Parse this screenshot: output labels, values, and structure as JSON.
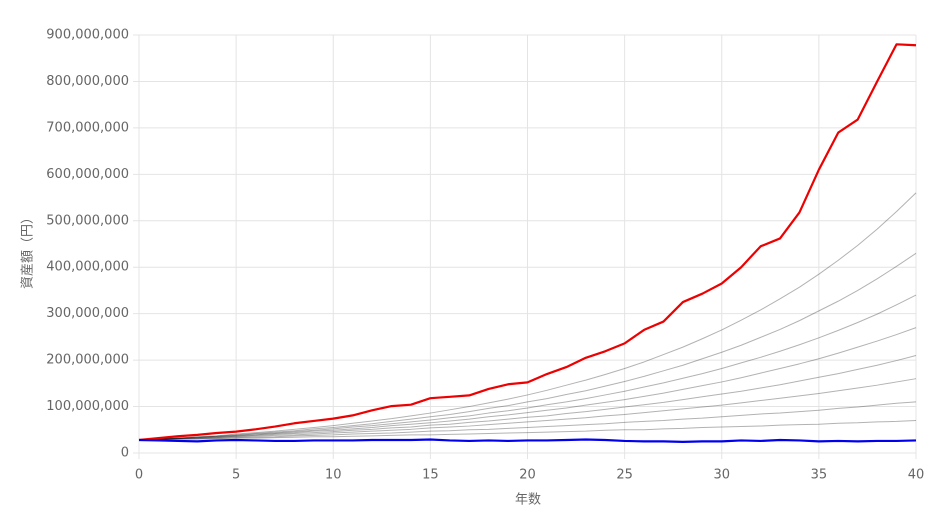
{
  "chart_data": {
    "type": "line",
    "xlabel": "年数",
    "ylabel": "資産額（円）",
    "x": [
      0,
      1,
      2,
      3,
      4,
      5,
      6,
      7,
      8,
      9,
      10,
      11,
      12,
      13,
      14,
      15,
      16,
      17,
      18,
      19,
      20,
      21,
      22,
      23,
      24,
      25,
      26,
      27,
      28,
      29,
      30,
      31,
      32,
      33,
      34,
      35,
      36,
      37,
      38,
      39,
      40
    ],
    "xlim": [
      0,
      40
    ],
    "xticks": [
      0,
      5,
      10,
      15,
      20,
      25,
      30,
      35,
      40
    ],
    "ylim": [
      0,
      900000000
    ],
    "yticks": [
      0,
      {
        "value": 100000000,
        "label": "100,000,000"
      },
      {
        "value": 200000000,
        "label": "200,000,000"
      },
      {
        "value": 300000000,
        "label": "300,000,000"
      },
      {
        "value": 400000000,
        "label": "400,000,000"
      },
      {
        "value": 500000000,
        "label": "500,000,000"
      },
      {
        "value": 600000000,
        "label": "600,000,000"
      },
      {
        "value": 700000000,
        "label": "700,000,000"
      },
      {
        "value": 800000000,
        "label": "800,000,000"
      },
      {
        "value": 900000000,
        "label": "900,000,000"
      }
    ],
    "grid": true,
    "series": [
      {
        "color": "rgba(0,0,0,0.3)",
        "values": [
          28000000,
          29000000,
          30000000,
          30000000,
          31000000,
          32000000,
          32000000,
          33000000,
          34000000,
          35000000,
          35000000,
          36000000,
          37000000,
          38000000,
          39000000,
          39000000,
          40000000,
          41000000,
          42000000,
          43000000,
          44000000,
          45000000,
          46000000,
          47000000,
          49000000,
          50000000,
          50000000,
          52000000,
          53000000,
          55000000,
          56000000,
          57000000,
          58000000,
          60000000,
          61000000,
          62000000,
          64000000,
          65000000,
          67000000,
          68000000,
          70000000
        ]
      },
      {
        "color": "rgba(0,0,0,0.3)",
        "values": [
          28000000,
          29000000,
          30000000,
          31000000,
          32000000,
          33000000,
          34000000,
          35000000,
          37000000,
          38000000,
          39000000,
          41000000,
          42000000,
          43000000,
          45000000,
          47000000,
          48000000,
          50000000,
          51000000,
          53000000,
          55000000,
          57000000,
          59000000,
          61000000,
          63000000,
          66000000,
          68000000,
          70000000,
          73000000,
          75000000,
          78000000,
          81000000,
          84000000,
          86000000,
          89000000,
          92000000,
          96000000,
          99000000,
          103000000,
          107000000,
          110000000
        ]
      },
      {
        "color": "rgba(0,0,0,0.3)",
        "values": [
          28000000,
          29000000,
          31000000,
          32000000,
          33000000,
          35000000,
          36000000,
          38000000,
          39000000,
          41000000,
          43000000,
          45000000,
          47000000,
          49000000,
          51000000,
          54000000,
          56000000,
          58000000,
          61000000,
          64000000,
          67000000,
          70000000,
          73000000,
          76000000,
          80000000,
          83000000,
          87000000,
          91000000,
          95000000,
          99000000,
          103000000,
          108000000,
          113000000,
          118000000,
          123000000,
          128000000,
          134000000,
          140000000,
          146000000,
          153000000,
          160000000
        ]
      },
      {
        "color": "rgba(0,0,0,0.3)",
        "values": [
          28000000,
          29000000,
          31000000,
          32000000,
          34000000,
          36000000,
          38000000,
          40000000,
          42000000,
          44000000,
          46000000,
          49000000,
          51000000,
          54000000,
          56000000,
          60000000,
          62000000,
          66000000,
          69000000,
          73000000,
          77000000,
          80000000,
          85000000,
          89000000,
          94000000,
          99000000,
          104000000,
          109000000,
          115000000,
          121000000,
          127000000,
          133000000,
          140000000,
          147000000,
          155000000,
          163000000,
          171000000,
          180000000,
          189000000,
          199000000,
          210000000
        ]
      },
      {
        "color": "rgba(0,0,0,0.3)",
        "values": [
          28000000,
          30000000,
          31000000,
          33000000,
          35000000,
          37000000,
          39000000,
          42000000,
          44000000,
          47000000,
          49000000,
          52000000,
          55000000,
          59000000,
          62000000,
          65000000,
          69000000,
          73000000,
          78000000,
          82000000,
          87000000,
          92000000,
          97000000,
          103000000,
          109000000,
          115000000,
          122000000,
          129000000,
          137000000,
          145000000,
          153000000,
          162000000,
          172000000,
          182000000,
          192000000,
          203000000,
          215000000,
          228000000,
          241000000,
          255000000,
          270000000
        ]
      },
      {
        "color": "rgba(0,0,0,0.3)",
        "values": [
          28000000,
          30000000,
          32000000,
          34000000,
          36000000,
          38000000,
          41000000,
          43000000,
          46000000,
          49000000,
          52000000,
          56000000,
          59000000,
          63000000,
          67000000,
          71000000,
          76000000,
          80000000,
          86000000,
          91000000,
          97000000,
          104000000,
          110000000,
          117000000,
          125000000,
          133000000,
          142000000,
          151000000,
          161000000,
          171000000,
          182000000,
          194000000,
          206000000,
          219000000,
          233000000,
          248000000,
          264000000,
          281000000,
          299000000,
          319000000,
          340000000
        ]
      },
      {
        "color": "rgba(0,0,0,0.3)",
        "values": [
          28000000,
          30000000,
          32000000,
          34000000,
          36000000,
          39000000,
          42000000,
          45000000,
          48000000,
          52000000,
          55000000,
          59000000,
          63000000,
          68000000,
          73000000,
          78000000,
          83000000,
          89000000,
          96000000,
          102000000,
          110000000,
          117000000,
          126000000,
          134000000,
          144000000,
          154000000,
          165000000,
          177000000,
          189000000,
          203000000,
          217000000,
          232000000,
          249000000,
          266000000,
          285000000,
          306000000,
          327000000,
          350000000,
          375000000,
          402000000,
          430000000
        ]
      },
      {
        "color": "rgba(0,0,0,0.3)",
        "values": [
          28000000,
          30000000,
          32000000,
          35000000,
          37000000,
          41000000,
          44000000,
          47000000,
          51000000,
          55000000,
          59000000,
          64000000,
          69000000,
          74000000,
          80000000,
          86000000,
          93000000,
          100000000,
          108000000,
          116000000,
          125000000,
          135000000,
          146000000,
          157000000,
          169000000,
          182000000,
          196000000,
          212000000,
          228000000,
          246000000,
          265000000,
          286000000,
          308000000,
          332000000,
          357000000,
          385000000,
          415000000,
          447000000,
          482000000,
          520000000,
          560000000
        ]
      },
      {
        "color": "#ee0000",
        "values": [
          28000000,
          32000000,
          36000000,
          39000000,
          43000000,
          46000000,
          51000000,
          57000000,
          64000000,
          69000000,
          74000000,
          81000000,
          92000000,
          101000000,
          104000000,
          118000000,
          121000000,
          124000000,
          138000000,
          148000000,
          152000000,
          170000000,
          185000000,
          205000000,
          219000000,
          236000000,
          265000000,
          283000000,
          325000000,
          343000000,
          365000000,
          400000000,
          445000000,
          462000000,
          518000000,
          610000000,
          690000000,
          718000000,
          800000000,
          880000000,
          878000000
        ]
      },
      {
        "color": "#0000ee",
        "values": [
          28000000,
          27000000,
          26000000,
          25000000,
          27000000,
          28000000,
          27000000,
          26000000,
          26000000,
          27000000,
          27000000,
          27000000,
          28000000,
          28000000,
          28000000,
          29000000,
          27000000,
          26000000,
          27000000,
          26000000,
          27000000,
          27000000,
          28000000,
          29000000,
          28000000,
          26000000,
          25000000,
          25000000,
          24000000,
          25000000,
          25000000,
          27000000,
          26000000,
          28000000,
          27000000,
          25000000,
          26000000,
          25000000,
          26000000,
          26000000,
          27000000
        ]
      }
    ]
  }
}
